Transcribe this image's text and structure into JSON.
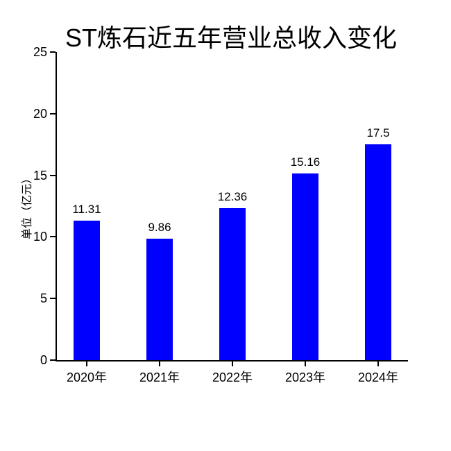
{
  "chart_data": {
    "type": "bar",
    "title": "ST炼石近五年营业总收入变化",
    "ylabel": "单位（亿元）",
    "xlabel": "",
    "categories": [
      "2020年",
      "2021年",
      "2022年",
      "2023年",
      "2024年"
    ],
    "values": [
      11.31,
      9.86,
      12.36,
      15.16,
      17.5
    ],
    "value_labels": [
      "11.31",
      "9.86",
      "12.36",
      "15.16",
      "17.5"
    ],
    "ylim": [
      0,
      25
    ],
    "yticks": [
      0,
      5,
      10,
      15,
      20,
      25
    ],
    "grid": false,
    "legend": "none",
    "bar_color": "#0000fe",
    "axis_color": "#000000",
    "text_color": "#000000",
    "background_color": "#ffffff"
  }
}
